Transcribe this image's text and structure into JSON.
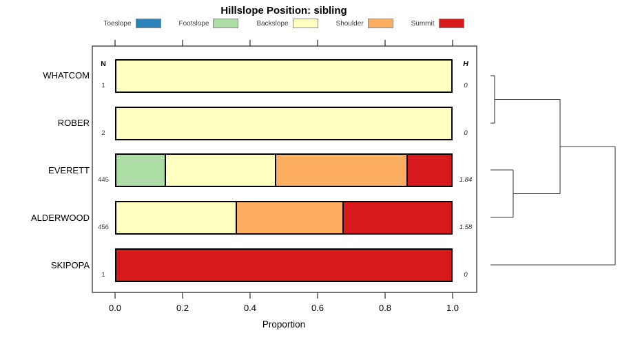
{
  "title": "Hillslope Position: sibling",
  "legend": {
    "items": [
      {
        "label": "Toeslope",
        "category": "Toeslope"
      },
      {
        "label": "Footslope",
        "category": "Footslope"
      },
      {
        "label": "Backslope",
        "category": "Backslope"
      },
      {
        "label": "Shoulder",
        "category": "Shoulder"
      },
      {
        "label": "Summit",
        "category": "Summit"
      }
    ]
  },
  "columns": {
    "n_header": "N",
    "h_header": "H"
  },
  "axis": {
    "label": "Proportion",
    "ticks": [
      "0.0",
      "0.2",
      "0.4",
      "0.6",
      "0.8",
      "1.0"
    ],
    "range": [
      0,
      1
    ]
  },
  "chart_data": {
    "type": "bar",
    "orientation": "horizontal-stacked",
    "title": "Hillslope Position: sibling",
    "xlabel": "Proportion",
    "xlim": [
      0,
      1
    ],
    "categories": [
      "Toeslope",
      "Footslope",
      "Backslope",
      "Shoulder",
      "Summit"
    ],
    "palette": {
      "Toeslope": "#2B83BA",
      "Footslope": "#ABDDA4",
      "Backslope": "#FFFFBF",
      "Shoulder": "#FDAE61",
      "Summit": "#D7191C"
    },
    "rows": [
      {
        "label": "WHATCOM",
        "n": "1",
        "h": "0",
        "segments": [
          {
            "category": "Backslope",
            "value": 1.0
          }
        ]
      },
      {
        "label": "ROBER",
        "n": "2",
        "h": "0",
        "segments": [
          {
            "category": "Backslope",
            "value": 1.0
          }
        ]
      },
      {
        "label": "EVERETT",
        "n": "445",
        "h": "1.84",
        "segments": [
          {
            "category": "Footslope",
            "value": 0.148
          },
          {
            "category": "Backslope",
            "value": 0.329
          },
          {
            "category": "Shoulder",
            "value": 0.394
          },
          {
            "category": "Summit",
            "value": 0.129
          }
        ]
      },
      {
        "label": "ALDERWOOD",
        "n": "456",
        "h": "1.58",
        "segments": [
          {
            "category": "Backslope",
            "value": 0.36
          },
          {
            "category": "Shoulder",
            "value": 0.32
          },
          {
            "category": "Summit",
            "value": 0.32
          }
        ]
      },
      {
        "label": "SKIPOPA",
        "n": "1",
        "h": "0",
        "segments": [
          {
            "category": "Summit",
            "value": 1.0
          }
        ]
      }
    ]
  },
  "dendrogram": {
    "leaf_order": [
      "WHATCOM",
      "ROBER",
      "EVERETT",
      "ALDERWOOD",
      "SKIPOPA"
    ],
    "tree": {
      "h": 1.0,
      "children": [
        {
          "h": 0.558,
          "children": [
            {
              "h": 0.033,
              "children": [
                "WHATCOM",
                "ROBER"
              ]
            },
            {
              "h": 0.182,
              "children": [
                "EVERETT",
                "ALDERWOOD"
              ]
            }
          ]
        },
        "SKIPOPA"
      ]
    }
  }
}
